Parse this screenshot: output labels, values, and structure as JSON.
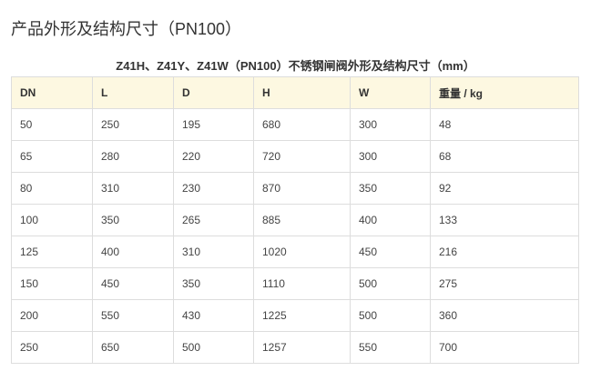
{
  "title": "产品外形及结构尺寸（PN100）",
  "caption": "Z41H、Z41Y、Z41W（PN100）不锈钢闸阀外形及结构尺寸（mm）",
  "table": {
    "headers": [
      "DN",
      "L",
      "D",
      "H",
      "W",
      "重量 / kg"
    ],
    "rows": [
      [
        "50",
        "250",
        "195",
        "680",
        "300",
        "48"
      ],
      [
        "65",
        "280",
        "220",
        "720",
        "300",
        "68"
      ],
      [
        "80",
        "310",
        "230",
        "870",
        "350",
        "92"
      ],
      [
        "100",
        "350",
        "265",
        "885",
        "400",
        "133"
      ],
      [
        "125",
        "400",
        "310",
        "1020",
        "450",
        "216"
      ],
      [
        "150",
        "450",
        "350",
        "1110",
        "500",
        "275"
      ],
      [
        "200",
        "550",
        "430",
        "1225",
        "500",
        "360"
      ],
      [
        "250",
        "650",
        "500",
        "1257",
        "550",
        "700"
      ]
    ]
  }
}
